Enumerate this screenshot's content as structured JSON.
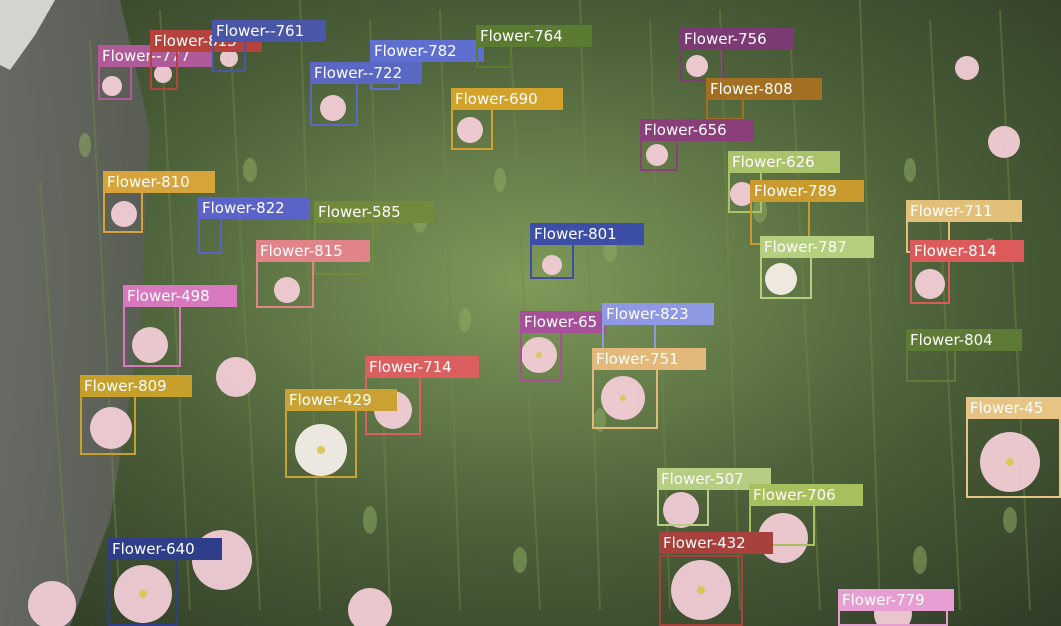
{
  "image": {
    "description_colors": {
      "foliage_dark": "#2f3b26",
      "foliage_mid": "#4a5e38",
      "foliage_light": "#7f9a5a",
      "path_gray": "#6e6f6c",
      "petal_pink": "#f2cdd6",
      "petal_white": "#f4efe8",
      "center_yellow": "#d8c64a"
    }
  },
  "detections": [
    {
      "id": "d777",
      "label": "Flower--777",
      "color": "#b15a9a"
    },
    {
      "id": "d813",
      "label": "Flower-813",
      "color": "#b6423c"
    },
    {
      "id": "d761",
      "label": "Flower--761",
      "color": "#4a56a8"
    },
    {
      "id": "d782",
      "label": "Flower-782",
      "color": "#5f6fd0"
    },
    {
      "id": "d722",
      "label": "Flower--722",
      "color": "#5a68c4"
    },
    {
      "id": "d764",
      "label": "Flower-764",
      "color": "#5b7a32"
    },
    {
      "id": "d756",
      "label": "Flower-756",
      "color": "#7c3a74"
    },
    {
      "id": "d808",
      "label": "Flower-808",
      "color": "#a37023"
    },
    {
      "id": "d690",
      "label": "Flower-690",
      "color": "#d4a22a"
    },
    {
      "id": "d656",
      "label": "Flower-656",
      "color": "#8a3f7a"
    },
    {
      "id": "d626",
      "label": "Flower-626",
      "color": "#aac26a"
    },
    {
      "id": "d789",
      "label": "Flower-789",
      "color": "#c99a2e"
    },
    {
      "id": "d711",
      "label": "Flower-711",
      "color": "#e3c07a"
    },
    {
      "id": "d810",
      "label": "Flower-810",
      "color": "#d6a43a"
    },
    {
      "id": "d822",
      "label": "Flower-822",
      "color": "#5a64c8"
    },
    {
      "id": "d585",
      "label": "Flower-585",
      "color": "#718a3b"
    },
    {
      "id": "d815",
      "label": "Flower-815",
      "color": "#e0848a"
    },
    {
      "id": "d801",
      "label": "Flower-801",
      "color": "#3c4ea6"
    },
    {
      "id": "d787",
      "label": "Flower-787",
      "color": "#b4cf7e"
    },
    {
      "id": "d814",
      "label": "Flower-814",
      "color": "#dc5a5a"
    },
    {
      "id": "d498",
      "label": "Flower-498",
      "color": "#d879c0"
    },
    {
      "id": "d6xx",
      "label": "Flower-65",
      "color": "#a7509a"
    },
    {
      "id": "d823",
      "label": "Flower-823",
      "color": "#8f98e3"
    },
    {
      "id": "d751",
      "label": "Flower-751",
      "color": "#e2b97a"
    },
    {
      "id": "d804",
      "label": "Flower-804",
      "color": "#5d7a36"
    },
    {
      "id": "d809",
      "label": "Flower-809",
      "color": "#c79f2b"
    },
    {
      "id": "d714",
      "label": "Flower-714",
      "color": "#dc5f5f"
    },
    {
      "id": "d429",
      "label": "Flower-429",
      "color": "#c9a233"
    },
    {
      "id": "d45",
      "label": "Flower-45",
      "color": "#e7c483"
    },
    {
      "id": "d507",
      "label": "Flower-507",
      "color": "#b6ce84"
    },
    {
      "id": "d706",
      "label": "Flower-706",
      "color": "#a7bf5d"
    },
    {
      "id": "d432",
      "label": "Flower-432",
      "color": "#a8413b"
    },
    {
      "id": "d640",
      "label": "Flower-640",
      "color": "#2e3e88"
    },
    {
      "id": "d779",
      "label": "Flower-779",
      "color": "#e79ed3"
    }
  ]
}
